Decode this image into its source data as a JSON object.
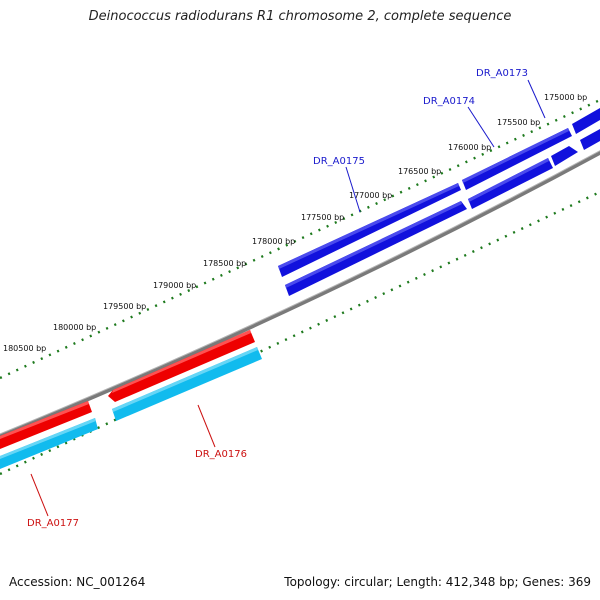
{
  "title": "Deinococcus radiodurans R1 chromosome 2, complete sequence",
  "footer": {
    "accession": "Accession: NC_001264",
    "summary": "Topology: circular; Length: 412,348 bp; Genes: 369"
  },
  "colors": {
    "forward_gene": "#1111dd",
    "reverse_gene": "#ee0000",
    "reverse_cds": "#11bbee",
    "backbone": "#777777",
    "ticks": "#1e7a1e",
    "forward_label": "#1a1acc",
    "reverse_label": "#cc1111"
  },
  "scale_labels": [
    "175000 bp",
    "175500 bp",
    "176000 bp",
    "176500 bp",
    "177000 bp",
    "177500 bp",
    "178000 bp",
    "178500 bp",
    "179000 bp",
    "179500 bp",
    "180000 bp",
    "180500 bp"
  ],
  "genes": [
    {
      "name": "DR_A0173",
      "strand": "forward"
    },
    {
      "name": "DR_A0174",
      "strand": "forward"
    },
    {
      "name": "DR_A0175",
      "strand": "forward"
    },
    {
      "name": "DR_A0176",
      "strand": "reverse"
    },
    {
      "name": "DR_A0177",
      "strand": "reverse"
    }
  ]
}
